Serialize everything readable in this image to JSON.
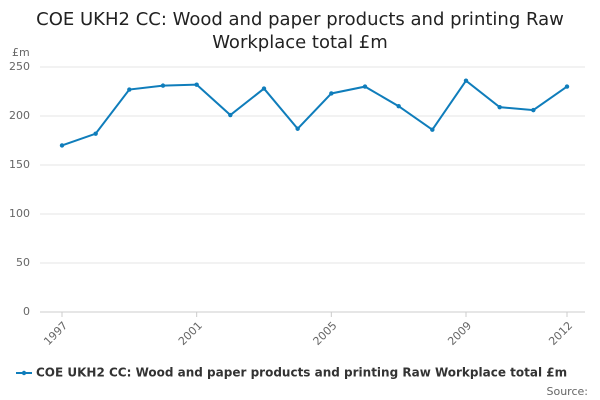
{
  "chart_data": {
    "type": "line",
    "title": "COE UKH2 CC: Wood and paper products and printing Raw Workplace total £m",
    "y_label": "£m",
    "source": "Source:",
    "x": [
      1997,
      1998,
      1999,
      2000,
      2001,
      2002,
      2003,
      2004,
      2005,
      2006,
      2007,
      2008,
      2009,
      2010,
      2011,
      2012
    ],
    "series": [
      {
        "name": "COE UKH2 CC: Wood and paper products and printing Raw Workplace total £m",
        "color": "#0f7dbb",
        "values": [
          170,
          182,
          227,
          231,
          232,
          201,
          228,
          187,
          223,
          230,
          210,
          186,
          236,
          209,
          206,
          230
        ]
      }
    ],
    "xlim": [
      1997,
      2012
    ],
    "xticks": [
      1997,
      2001,
      2005,
      2009,
      2012
    ],
    "ylim": [
      0,
      250
    ],
    "yticks": [
      0,
      50,
      100,
      150,
      200,
      250
    ],
    "grid": true
  }
}
